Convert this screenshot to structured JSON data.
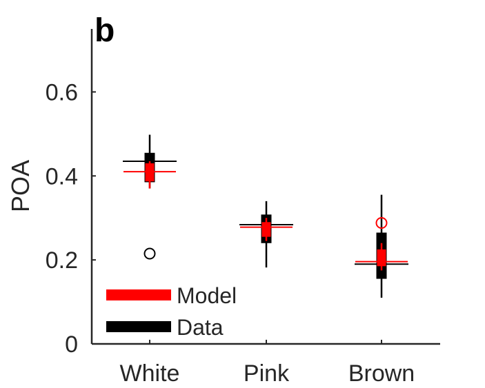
{
  "chart_data": {
    "type": "box",
    "panel_label": "b",
    "title": "",
    "xlabel": "",
    "ylabel": "POA",
    "ylim": [
      0,
      0.75
    ],
    "yticks": [
      {
        "value": 0,
        "label": "0"
      },
      {
        "value": 0.2,
        "label": "0.2"
      },
      {
        "value": 0.4,
        "label": "0.4"
      },
      {
        "value": 0.6,
        "label": "0.6"
      }
    ],
    "categories": [
      "White",
      "Pink",
      "Brown"
    ],
    "legend": {
      "location": "bottom-left",
      "entries": [
        {
          "name": "Model",
          "color": "#ff0000"
        },
        {
          "name": "Data",
          "color": "#000000"
        }
      ]
    },
    "series": [
      {
        "name": "Data",
        "color": "#000000",
        "boxes": [
          {
            "category": "White",
            "whisker_low": 0.37,
            "q1": 0.385,
            "median": 0.435,
            "q3": 0.455,
            "whisker_high": 0.498,
            "outliers": [
              0.215
            ]
          },
          {
            "category": "Pink",
            "whisker_low": 0.182,
            "q1": 0.24,
            "median": 0.284,
            "q3": 0.308,
            "whisker_high": 0.34,
            "outliers": []
          },
          {
            "category": "Brown",
            "whisker_low": 0.11,
            "q1": 0.155,
            "median": 0.19,
            "q3": 0.265,
            "whisker_high": 0.355,
            "outliers": []
          }
        ]
      },
      {
        "name": "Model",
        "color": "#ff0000",
        "boxes": [
          {
            "category": "White",
            "whisker_low": 0.37,
            "q1": 0.387,
            "median": 0.41,
            "q3": 0.43,
            "whisker_high": 0.435,
            "outliers": []
          },
          {
            "category": "Pink",
            "whisker_low": 0.245,
            "q1": 0.255,
            "median": 0.278,
            "q3": 0.29,
            "whisker_high": 0.3,
            "outliers": []
          },
          {
            "category": "Brown",
            "whisker_low": 0.175,
            "q1": 0.185,
            "median": 0.196,
            "q3": 0.225,
            "whisker_high": 0.24,
            "outliers": [
              0.288
            ]
          }
        ]
      }
    ]
  }
}
